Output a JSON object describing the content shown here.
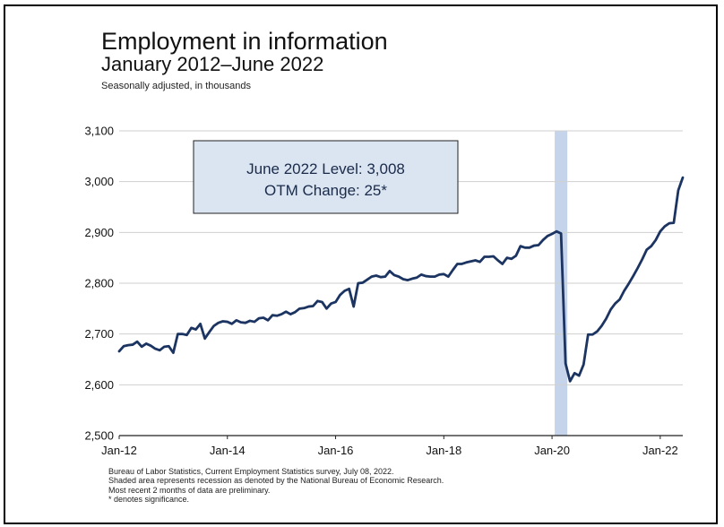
{
  "chart_data": {
    "type": "line",
    "title": "Employment in information",
    "subtitle": "January 2012–June 2022",
    "units_note": "Seasonally adjusted, in thousands",
    "ylim": [
      2500,
      3100
    ],
    "y_ticks": [
      2500,
      2600,
      2700,
      2800,
      2900,
      3000,
      3100
    ],
    "y_tick_labels": [
      "2,500",
      "2,600",
      "2,700",
      "2,800",
      "2,900",
      "3,000",
      "3,100"
    ],
    "x_range": [
      "2012-01",
      "2022-06"
    ],
    "x_ticks": [
      "2012-01",
      "2014-01",
      "2016-01",
      "2018-01",
      "2020-01",
      "2022-01"
    ],
    "x_tick_labels": [
      "Jan-12",
      "Jan-14",
      "Jan-16",
      "Jan-18",
      "Jan-20",
      "Jan-22"
    ],
    "grid": true,
    "recession": {
      "start": "2020-02",
      "end": "2020-04"
    },
    "callout": [
      "June 2022 Level: 3,008",
      "OTM Change: 25*"
    ],
    "series": [
      {
        "color": "#1c3461",
        "points": [
          [
            "2012-01",
            2666
          ],
          [
            "2012-02",
            2676
          ],
          [
            "2012-03",
            2678
          ],
          [
            "2012-04",
            2679
          ],
          [
            "2012-05",
            2685
          ],
          [
            "2012-06",
            2675
          ],
          [
            "2012-07",
            2681
          ],
          [
            "2012-08",
            2677
          ],
          [
            "2012-09",
            2671
          ],
          [
            "2012-10",
            2668
          ],
          [
            "2012-11",
            2675
          ],
          [
            "2012-12",
            2676
          ],
          [
            "2013-01",
            2663
          ],
          [
            "2013-02",
            2700
          ],
          [
            "2013-03",
            2700
          ],
          [
            "2013-04",
            2698
          ],
          [
            "2013-05",
            2712
          ],
          [
            "2013-06",
            2709
          ],
          [
            "2013-07",
            2720
          ],
          [
            "2013-08",
            2691
          ],
          [
            "2013-09",
            2704
          ],
          [
            "2013-10",
            2716
          ],
          [
            "2013-11",
            2722
          ],
          [
            "2013-12",
            2725
          ],
          [
            "2014-01",
            2724
          ],
          [
            "2014-02",
            2720
          ],
          [
            "2014-03",
            2727
          ],
          [
            "2014-04",
            2723
          ],
          [
            "2014-05",
            2722
          ],
          [
            "2014-06",
            2726
          ],
          [
            "2014-07",
            2724
          ],
          [
            "2014-08",
            2731
          ],
          [
            "2014-09",
            2732
          ],
          [
            "2014-10",
            2727
          ],
          [
            "2014-11",
            2737
          ],
          [
            "2014-12",
            2736
          ],
          [
            "2015-01",
            2739
          ],
          [
            "2015-02",
            2744
          ],
          [
            "2015-03",
            2739
          ],
          [
            "2015-04",
            2743
          ],
          [
            "2015-05",
            2750
          ],
          [
            "2015-06",
            2751
          ],
          [
            "2015-07",
            2754
          ],
          [
            "2015-08",
            2755
          ],
          [
            "2015-09",
            2765
          ],
          [
            "2015-10",
            2763
          ],
          [
            "2015-11",
            2750
          ],
          [
            "2015-12",
            2760
          ],
          [
            "2016-01",
            2763
          ],
          [
            "2016-02",
            2777
          ],
          [
            "2016-03",
            2785
          ],
          [
            "2016-04",
            2789
          ],
          [
            "2016-05",
            2754
          ],
          [
            "2016-06",
            2800
          ],
          [
            "2016-07",
            2801
          ],
          [
            "2016-08",
            2807
          ],
          [
            "2016-09",
            2813
          ],
          [
            "2016-10",
            2815
          ],
          [
            "2016-11",
            2812
          ],
          [
            "2016-12",
            2813
          ],
          [
            "2017-01",
            2824
          ],
          [
            "2017-02",
            2816
          ],
          [
            "2017-03",
            2813
          ],
          [
            "2017-04",
            2808
          ],
          [
            "2017-05",
            2806
          ],
          [
            "2017-06",
            2809
          ],
          [
            "2017-07",
            2811
          ],
          [
            "2017-08",
            2817
          ],
          [
            "2017-09",
            2814
          ],
          [
            "2017-10",
            2813
          ],
          [
            "2017-11",
            2813
          ],
          [
            "2017-12",
            2817
          ],
          [
            "2018-01",
            2818
          ],
          [
            "2018-02",
            2813
          ],
          [
            "2018-03",
            2826
          ],
          [
            "2018-04",
            2838
          ],
          [
            "2018-05",
            2838
          ],
          [
            "2018-06",
            2841
          ],
          [
            "2018-07",
            2843
          ],
          [
            "2018-08",
            2845
          ],
          [
            "2018-09",
            2842
          ],
          [
            "2018-10",
            2852
          ],
          [
            "2018-11",
            2852
          ],
          [
            "2018-12",
            2853
          ],
          [
            "2019-01",
            2845
          ],
          [
            "2019-02",
            2838
          ],
          [
            "2019-03",
            2850
          ],
          [
            "2019-04",
            2848
          ],
          [
            "2019-05",
            2854
          ],
          [
            "2019-06",
            2873
          ],
          [
            "2019-07",
            2870
          ],
          [
            "2019-08",
            2870
          ],
          [
            "2019-09",
            2874
          ],
          [
            "2019-10",
            2875
          ],
          [
            "2019-11",
            2885
          ],
          [
            "2019-12",
            2893
          ],
          [
            "2020-01",
            2897
          ],
          [
            "2020-02",
            2902
          ],
          [
            "2020-03",
            2898
          ],
          [
            "2020-04",
            2642
          ],
          [
            "2020-05",
            2607
          ],
          [
            "2020-06",
            2623
          ],
          [
            "2020-07",
            2618
          ],
          [
            "2020-08",
            2640
          ],
          [
            "2020-09",
            2699
          ],
          [
            "2020-10",
            2699
          ],
          [
            "2020-11",
            2705
          ],
          [
            "2020-12",
            2716
          ],
          [
            "2021-01",
            2730
          ],
          [
            "2021-02",
            2748
          ],
          [
            "2021-03",
            2760
          ],
          [
            "2021-04",
            2768
          ],
          [
            "2021-05",
            2785
          ],
          [
            "2021-06",
            2799
          ],
          [
            "2021-07",
            2814
          ],
          [
            "2021-08",
            2830
          ],
          [
            "2021-09",
            2847
          ],
          [
            "2021-10",
            2866
          ],
          [
            "2021-11",
            2873
          ],
          [
            "2021-12",
            2885
          ],
          [
            "2022-01",
            2902
          ],
          [
            "2022-02",
            2912
          ],
          [
            "2022-03",
            2918
          ],
          [
            "2022-04",
            2919
          ],
          [
            "2022-05",
            2983
          ],
          [
            "2022-06",
            3008
          ]
        ]
      }
    ]
  },
  "footnotes": [
    "Bureau of Labor Statistics, Current Employment Statistics survey, July 08, 2022.",
    "Shaded area represents recession as denoted by the National Bureau of Economic Research.",
    "Most recent 2 months of data are preliminary.",
    "* denotes significance."
  ]
}
